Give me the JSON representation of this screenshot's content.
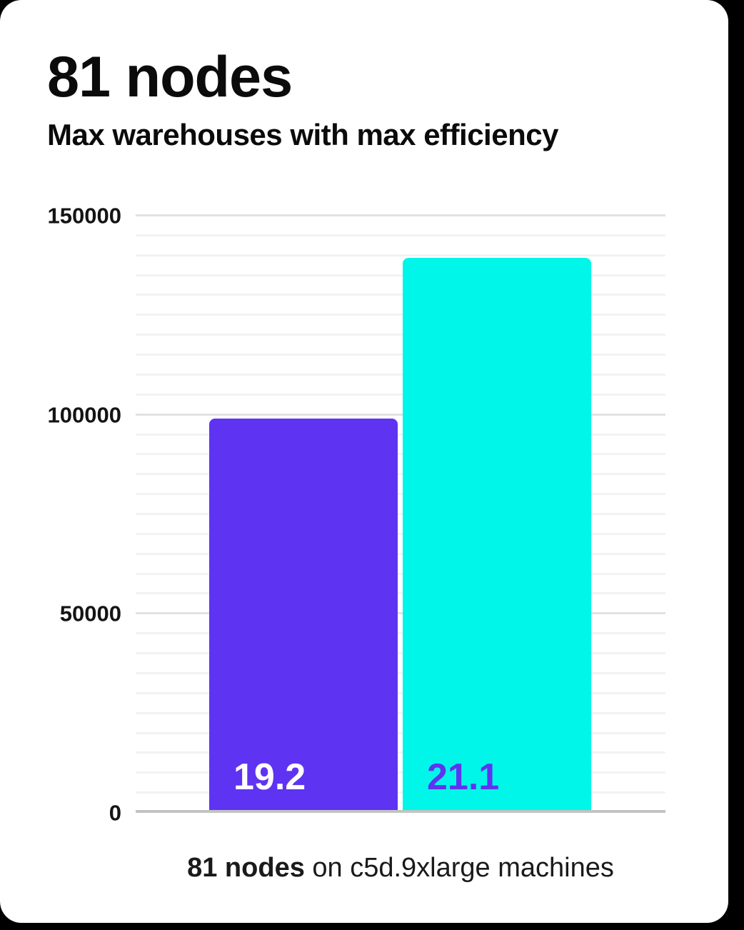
{
  "page": {
    "background_color": "#000000",
    "card_color": "#ffffff"
  },
  "header": {
    "title": "81 nodes",
    "subtitle": "Max warehouses with max efficiency"
  },
  "caption": {
    "bold": "81 nodes",
    "rest": " on c5d.9xlarge machines"
  },
  "colors": {
    "purple": "#5f33f2",
    "cyan": "#00f6e8",
    "grid_minor": "#f2f2f2",
    "grid_major": "#e2e2e2",
    "axis_line": "#c3c3c3",
    "text": "#0b0b0b"
  },
  "chart_data": {
    "type": "bar",
    "title": "81 nodes",
    "subtitle": "Max warehouses with max efficiency",
    "caption": "81 nodes on c5d.9xlarge machines",
    "categories": [
      "19.2",
      "21.1"
    ],
    "values": [
      99000,
      139500
    ],
    "bar_labels": [
      "19.2",
      "21.1"
    ],
    "bar_colors": [
      "#5f33f2",
      "#00f6e8"
    ],
    "bar_label_colors": [
      "#ffffff",
      "#5f33f2"
    ],
    "xlabel": "",
    "ylabel": "",
    "ylim": [
      0,
      150000
    ],
    "y_ticks": [
      150000,
      100000,
      50000,
      0
    ],
    "y_tick_labels": [
      "150000",
      "100000",
      "50000",
      "0"
    ],
    "minor_grid_step": 5000,
    "grid": true,
    "legend": false
  }
}
